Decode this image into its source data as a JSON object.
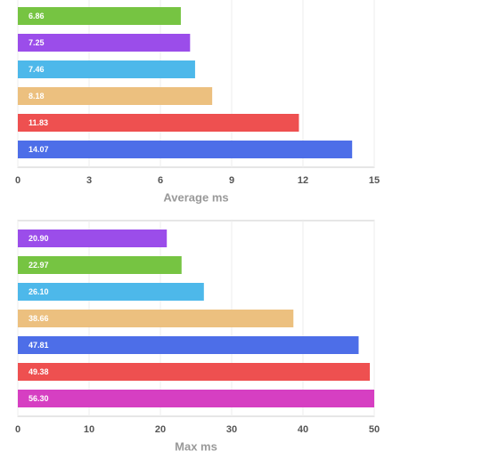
{
  "chart_data": [
    {
      "type": "bar",
      "orientation": "horizontal",
      "x_label": "Average ms",
      "values": [
        6.86,
        7.25,
        7.46,
        8.18,
        11.83,
        14.07
      ],
      "value_labels": [
        "6.86",
        "7.25",
        "7.46",
        "8.18",
        "11.83",
        "14.07"
      ],
      "colors": [
        "#76c442",
        "#9b4dea",
        "#4db8ea",
        "#ecc07f",
        "#ee5050",
        "#4d6ee8"
      ],
      "xlim": [
        0,
        15
      ],
      "xticks": [
        0,
        3,
        6,
        9,
        12,
        15
      ],
      "grid": true
    },
    {
      "type": "bar",
      "orientation": "horizontal",
      "x_label": "Max ms",
      "values": [
        20.9,
        22.97,
        26.1,
        38.66,
        47.81,
        49.38,
        56.3
      ],
      "value_labels": [
        "20.90",
        "22.97",
        "26.10",
        "38.66",
        "47.81",
        "49.38",
        "56.30"
      ],
      "colors": [
        "#9b4dea",
        "#76c442",
        "#4db8ea",
        "#ecc07f",
        "#4d6ee8",
        "#ee5050",
        "#d63fc2"
      ],
      "xlim": [
        0,
        50
      ],
      "xticks": [
        0,
        10,
        20,
        30,
        40,
        50
      ],
      "grid": true
    }
  ]
}
